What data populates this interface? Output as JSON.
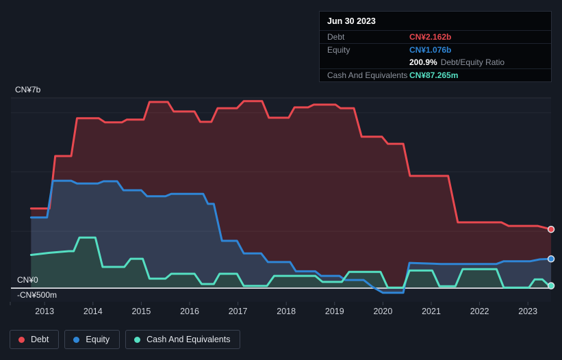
{
  "tooltip": {
    "date": "Jun 30 2023",
    "rows": [
      {
        "label": "Debt",
        "value": "CN¥2.162b",
        "color_key": "debt",
        "sep": true
      },
      {
        "label": "Equity",
        "value": "CN¥1.076b",
        "color_key": "equity",
        "sep": false
      },
      {
        "label": "",
        "value": "200.9%",
        "suffix": "Debt/Equity Ratio",
        "color_key": "white",
        "sep": true
      },
      {
        "label": "Cash And Equivalents",
        "value": "CN¥87.265m",
        "color_key": "cash",
        "sep": false
      }
    ]
  },
  "axis": {
    "y_top_label": "CN¥7b",
    "y_zero_label": "CN¥0",
    "y_neg_label": "-CN¥500m",
    "x_labels": [
      "2013",
      "2014",
      "2015",
      "2016",
      "2017",
      "2018",
      "2019",
      "2020",
      "2021",
      "2022",
      "2023"
    ]
  },
  "legend": [
    {
      "id": "debt",
      "label": "Debt"
    },
    {
      "id": "equity",
      "label": "Equity"
    },
    {
      "id": "cash",
      "label": "Cash And Equivalents"
    }
  ],
  "colors": {
    "debt": "#e8484f",
    "equity": "#2f86d6",
    "cash": "#55dfc2",
    "white": "#ffffff",
    "debt_fill": "#44222b",
    "equity_fill": "#333d53",
    "cash_fill": "#2c4746",
    "grid": "rgba(255,255,255,0.055)",
    "zero_line": "#c9ccd1",
    "tick": "#3a414e",
    "plot_bg": "#181d28"
  },
  "chart_data": {
    "type": "area",
    "title": "Debt to Equity History (CN¥, billions)",
    "x_unit": "decimal_year",
    "x_range": [
      2012.72,
      2023.48
    ],
    "ylim": [
      -0.5,
      7.0
    ],
    "y_gridline_values": [
      7.0,
      6.45,
      4.28,
      2.09
    ],
    "x_tick_years": [
      2013,
      2014,
      2015,
      2016,
      2017,
      2018,
      2019,
      2020,
      2021,
      2022,
      2023
    ],
    "legend_position": "bottom-left",
    "series": [
      {
        "name": "Debt",
        "color_key": "debt",
        "final_label": "CN¥2.162b",
        "points": [
          [
            2012.72,
            2.93
          ],
          [
            2013.1,
            2.93
          ],
          [
            2013.22,
            4.86
          ],
          [
            2013.55,
            4.86
          ],
          [
            2013.67,
            6.25
          ],
          [
            2014.12,
            6.25
          ],
          [
            2014.25,
            6.1
          ],
          [
            2014.6,
            6.1
          ],
          [
            2014.7,
            6.2
          ],
          [
            2015.05,
            6.2
          ],
          [
            2015.17,
            6.85
          ],
          [
            2015.55,
            6.85
          ],
          [
            2015.67,
            6.5
          ],
          [
            2016.1,
            6.5
          ],
          [
            2016.22,
            6.12
          ],
          [
            2016.45,
            6.12
          ],
          [
            2016.58,
            6.62
          ],
          [
            2016.98,
            6.62
          ],
          [
            2017.12,
            6.88
          ],
          [
            2017.5,
            6.88
          ],
          [
            2017.64,
            6.27
          ],
          [
            2018.05,
            6.27
          ],
          [
            2018.17,
            6.65
          ],
          [
            2018.45,
            6.65
          ],
          [
            2018.57,
            6.75
          ],
          [
            2019.02,
            6.75
          ],
          [
            2019.12,
            6.62
          ],
          [
            2019.4,
            6.62
          ],
          [
            2019.56,
            5.57
          ],
          [
            2019.98,
            5.57
          ],
          [
            2020.1,
            5.31
          ],
          [
            2020.42,
            5.31
          ],
          [
            2020.56,
            4.13
          ],
          [
            2021.35,
            4.13
          ],
          [
            2021.55,
            2.42
          ],
          [
            2022.45,
            2.42
          ],
          [
            2022.6,
            2.29
          ],
          [
            2023.2,
            2.29
          ],
          [
            2023.48,
            2.162
          ]
        ]
      },
      {
        "name": "Equity",
        "color_key": "equity",
        "final_label": "CN¥1.076b",
        "points": [
          [
            2012.72,
            2.6
          ],
          [
            2013.05,
            2.6
          ],
          [
            2013.17,
            3.95
          ],
          [
            2013.55,
            3.95
          ],
          [
            2013.67,
            3.85
          ],
          [
            2014.1,
            3.85
          ],
          [
            2014.22,
            3.93
          ],
          [
            2014.5,
            3.93
          ],
          [
            2014.63,
            3.6
          ],
          [
            2015.0,
            3.6
          ],
          [
            2015.12,
            3.38
          ],
          [
            2015.5,
            3.38
          ],
          [
            2015.62,
            3.47
          ],
          [
            2016.28,
            3.47
          ],
          [
            2016.38,
            3.1
          ],
          [
            2016.5,
            3.1
          ],
          [
            2016.67,
            1.74
          ],
          [
            2016.98,
            1.74
          ],
          [
            2017.12,
            1.28
          ],
          [
            2017.48,
            1.28
          ],
          [
            2017.62,
            0.96
          ],
          [
            2018.08,
            0.96
          ],
          [
            2018.2,
            0.62
          ],
          [
            2018.6,
            0.62
          ],
          [
            2018.72,
            0.45
          ],
          [
            2019.1,
            0.45
          ],
          [
            2019.22,
            0.3
          ],
          [
            2019.6,
            0.3
          ],
          [
            2019.78,
            0.05
          ],
          [
            2020.0,
            -0.17
          ],
          [
            2020.42,
            -0.17
          ],
          [
            2020.55,
            0.93
          ],
          [
            2021.2,
            0.89
          ],
          [
            2022.35,
            0.89
          ],
          [
            2022.5,
            0.99
          ],
          [
            2023.05,
            0.99
          ],
          [
            2023.25,
            1.06
          ],
          [
            2023.48,
            1.076
          ]
        ]
      },
      {
        "name": "Cash And Equivalents",
        "color_key": "cash",
        "final_label": "CN¥87.265m",
        "points": [
          [
            2012.72,
            1.22
          ],
          [
            2013.1,
            1.3
          ],
          [
            2013.5,
            1.36
          ],
          [
            2013.6,
            1.36
          ],
          [
            2013.72,
            1.86
          ],
          [
            2014.05,
            1.86
          ],
          [
            2014.2,
            0.78
          ],
          [
            2014.65,
            0.78
          ],
          [
            2014.78,
            1.08
          ],
          [
            2015.03,
            1.08
          ],
          [
            2015.17,
            0.35
          ],
          [
            2015.5,
            0.35
          ],
          [
            2015.62,
            0.53
          ],
          [
            2016.1,
            0.53
          ],
          [
            2016.25,
            0.15
          ],
          [
            2016.5,
            0.15
          ],
          [
            2016.62,
            0.53
          ],
          [
            2016.98,
            0.53
          ],
          [
            2017.12,
            0.08
          ],
          [
            2017.6,
            0.08
          ],
          [
            2017.75,
            0.45
          ],
          [
            2018.6,
            0.45
          ],
          [
            2018.75,
            0.23
          ],
          [
            2019.15,
            0.23
          ],
          [
            2019.3,
            0.6
          ],
          [
            2019.95,
            0.6
          ],
          [
            2020.1,
            0.02
          ],
          [
            2020.42,
            0.02
          ],
          [
            2020.55,
            0.65
          ],
          [
            2021.02,
            0.65
          ],
          [
            2021.17,
            0.07
          ],
          [
            2021.5,
            0.07
          ],
          [
            2021.65,
            0.7
          ],
          [
            2022.35,
            0.7
          ],
          [
            2022.5,
            0.02
          ],
          [
            2023.02,
            0.02
          ],
          [
            2023.14,
            0.32
          ],
          [
            2023.3,
            0.32
          ],
          [
            2023.44,
            0.087
          ],
          [
            2023.48,
            0.087
          ]
        ]
      }
    ]
  }
}
